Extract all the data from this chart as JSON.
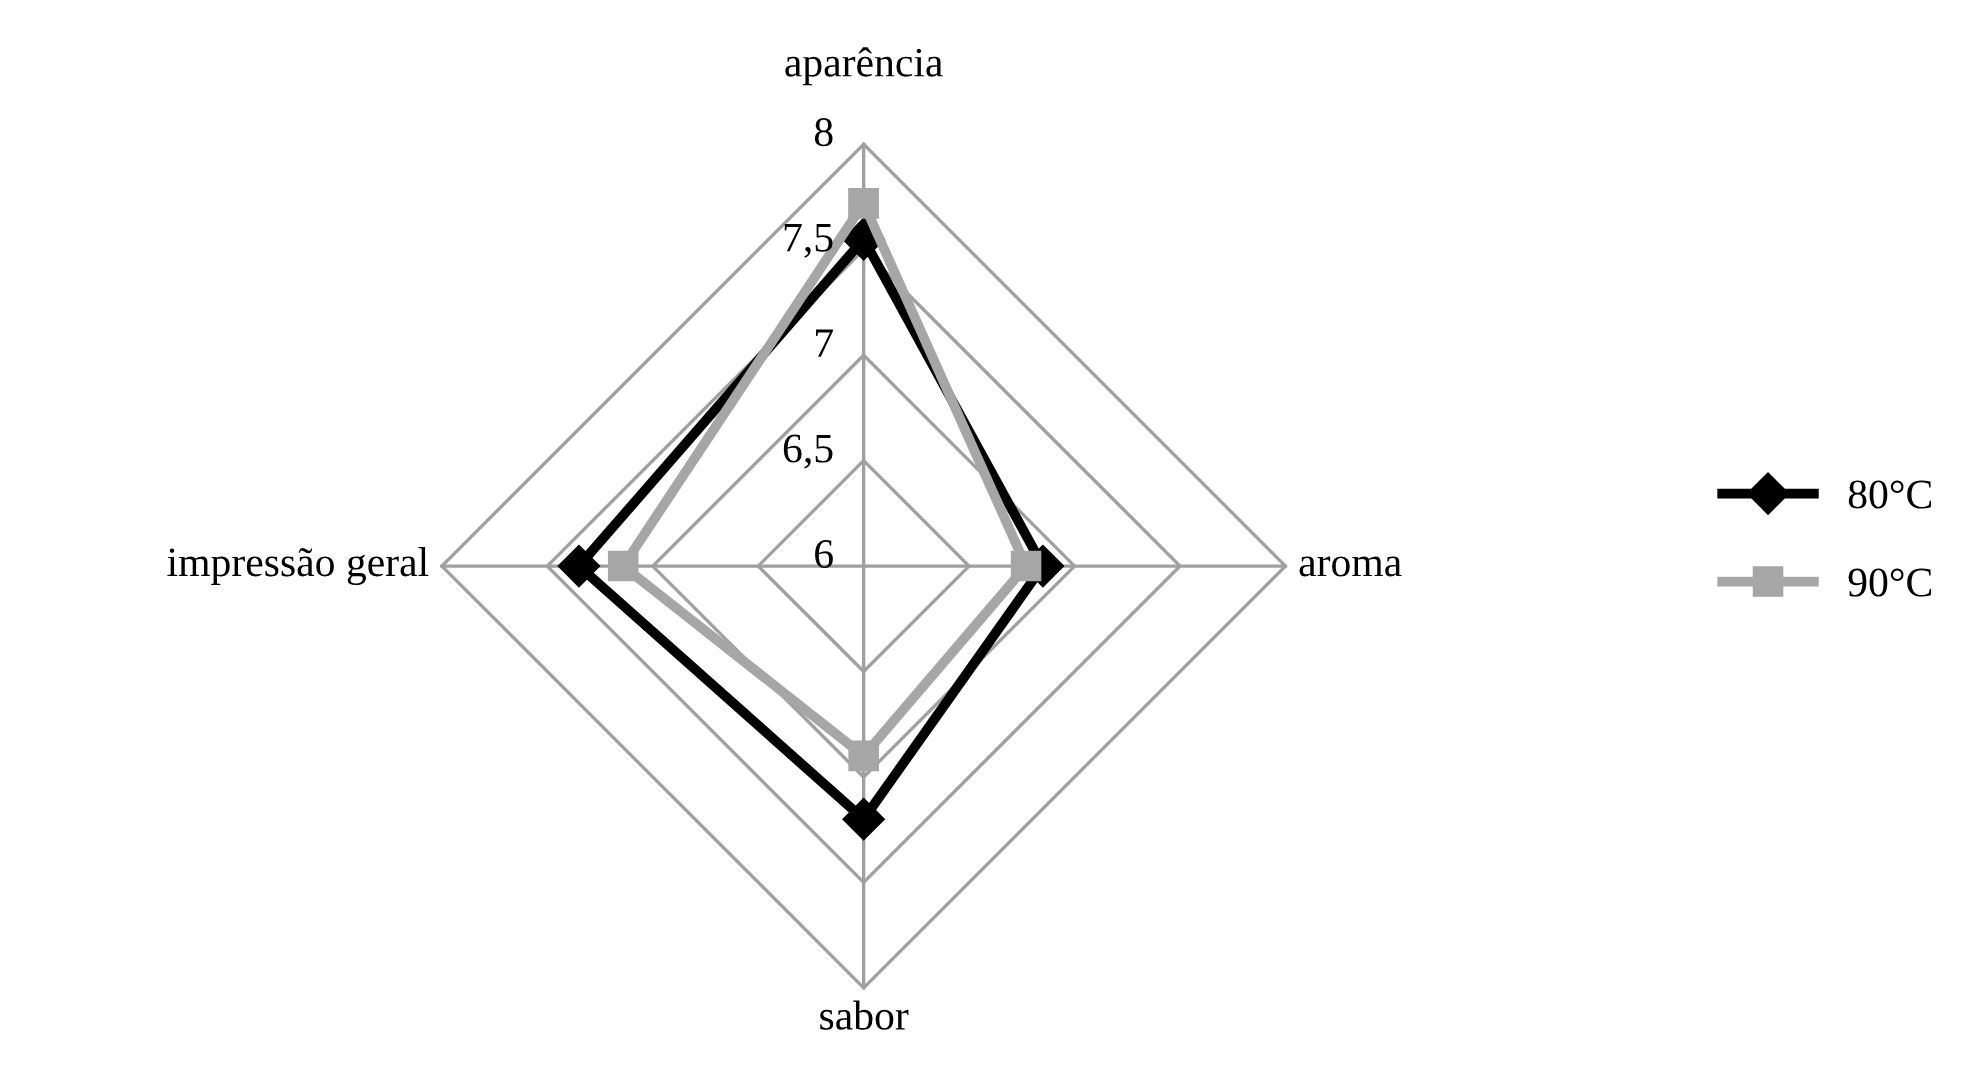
{
  "chart_data": {
    "type": "radar",
    "categories": [
      "aparência",
      "aroma",
      "sabor",
      "impressão geral"
    ],
    "series": [
      {
        "name": "80°C",
        "color": "#000000",
        "marker": "diamond",
        "values": [
          7.55,
          6.85,
          7.2,
          7.35
        ]
      },
      {
        "name": "90°C",
        "color": "#a6a6a6",
        "marker": "square",
        "values": [
          7.72,
          6.77,
          6.9,
          7.14
        ]
      }
    ],
    "ylim": [
      6,
      8
    ],
    "yticks": [
      6,
      {
        "value": 6.5,
        "label": "6,5"
      },
      7,
      {
        "value": 7.5,
        "label": "7,5"
      },
      8
    ],
    "grid": true,
    "legend": "right"
  }
}
